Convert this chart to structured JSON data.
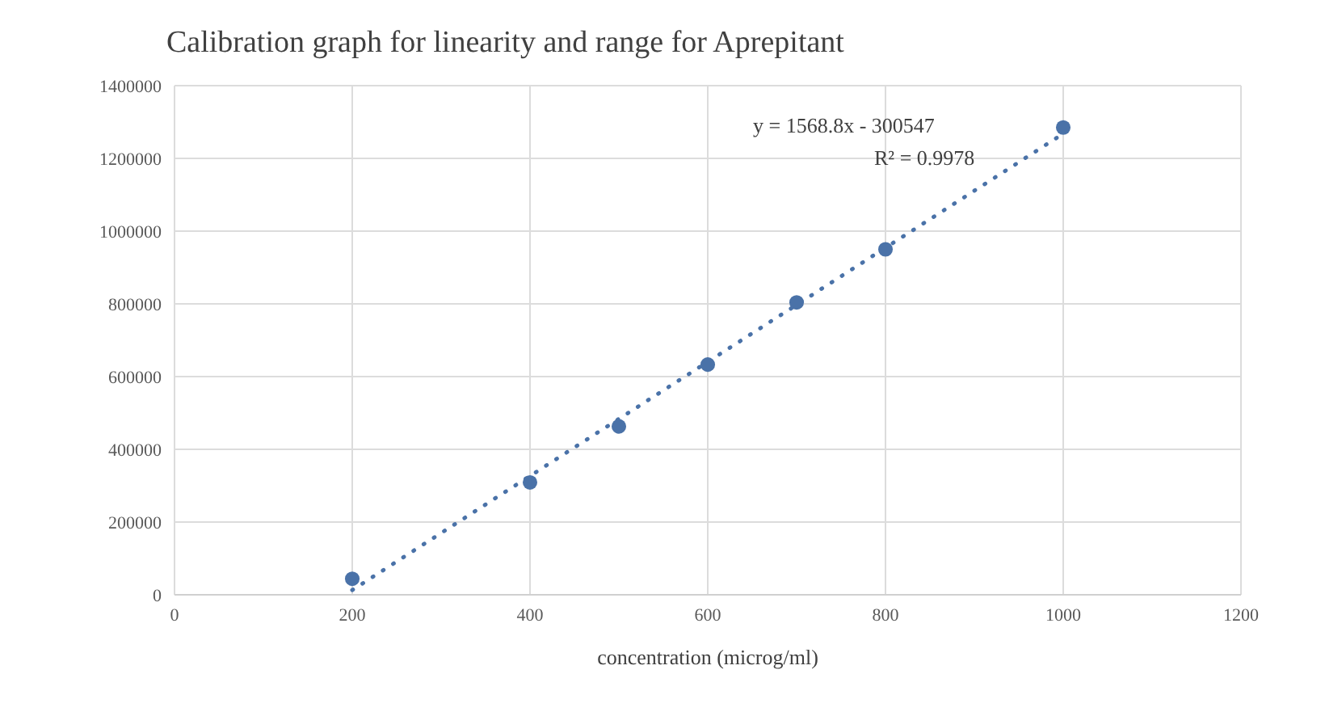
{
  "chart_data": {
    "type": "scatter",
    "title": "Calibration graph for linearity and range for Aprepitant",
    "xlabel": "concentration (microg/ml)",
    "x": [
      200,
      400,
      500,
      600,
      700,
      800,
      1000
    ],
    "series": [
      {
        "color": "#4a72a8",
        "values": [
          44000,
          309000,
          463000,
          633000,
          804000,
          950000,
          1285000
        ],
        "marker": "circle"
      },
      {
        "type": "line",
        "color": "#4a72a8",
        "x": [
          200,
          1000
        ],
        "values": [
          13000,
          1268000
        ],
        "marker": "none",
        "line_style": "dotted"
      }
    ],
    "annotations": [
      "y = 1568.8x - 300547",
      "R² = 0.9978"
    ],
    "xlim": [
      0,
      1200
    ],
    "xticks": [
      0,
      200,
      400,
      600,
      800,
      1000,
      1200
    ],
    "ylim": [
      0,
      1400000
    ],
    "yticks": [
      0,
      200000,
      400000,
      600000,
      800000,
      1000000,
      1200000,
      1400000
    ],
    "grid": true,
    "legend": false
  }
}
